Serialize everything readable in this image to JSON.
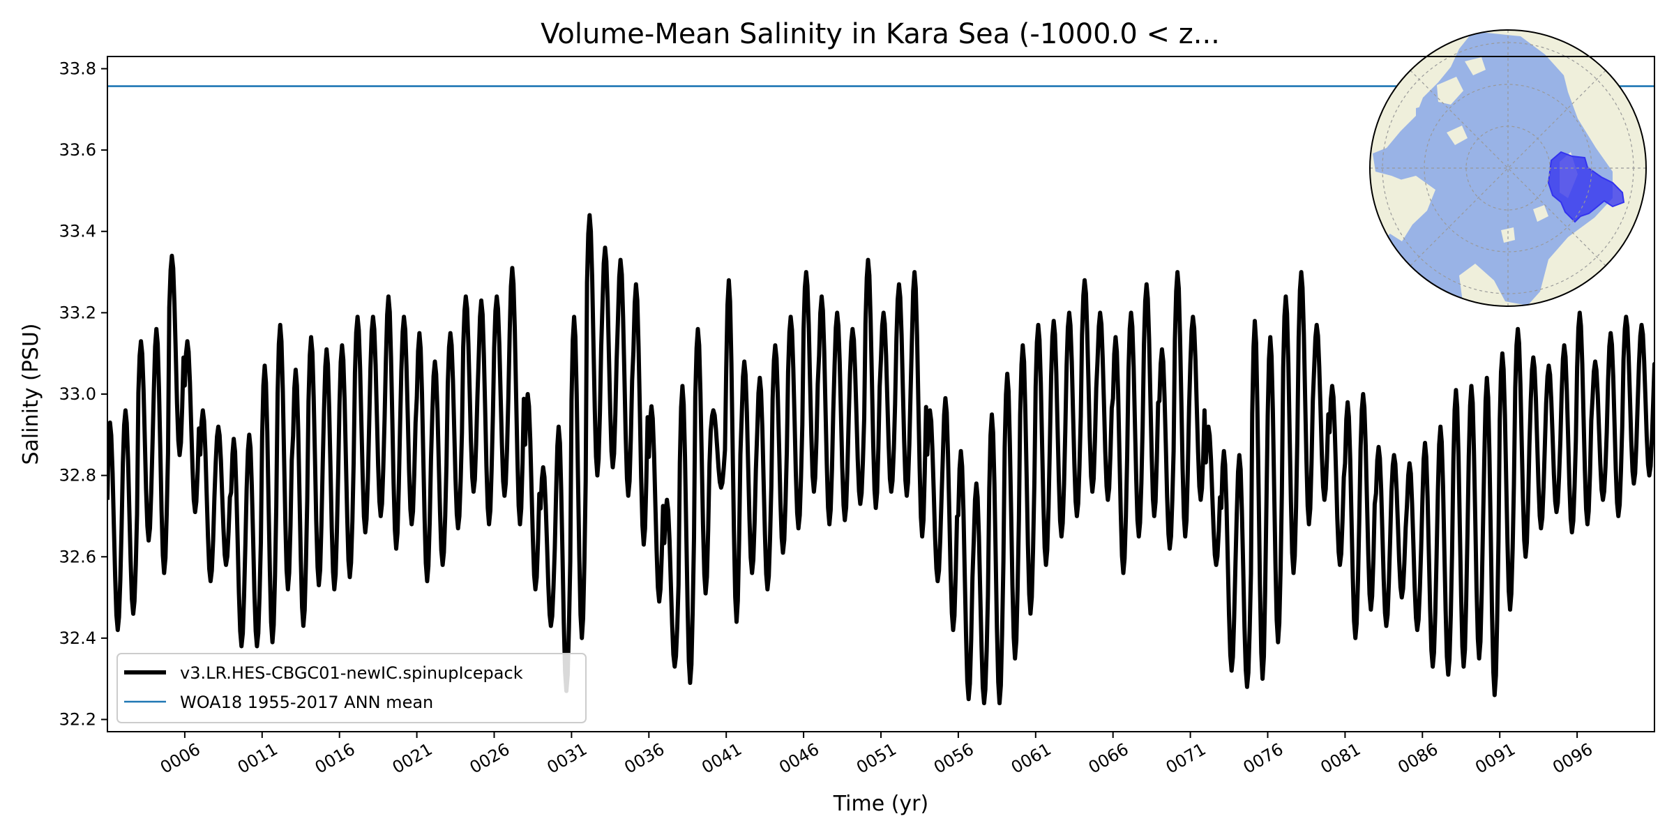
{
  "chart_data": {
    "type": "line",
    "title": "Volume-Mean Salinity in Kara Sea (-1000.0 < z...",
    "xlabel": "Time (yr)",
    "ylabel": "Salinity (PSU)",
    "xlim": [
      1.0,
      101.0
    ],
    "ylim": [
      32.17,
      33.83
    ],
    "x_ticks": [
      6,
      11,
      16,
      21,
      26,
      31,
      36,
      41,
      46,
      51,
      56,
      61,
      66,
      71,
      76,
      81,
      86,
      91,
      96
    ],
    "x_tick_labels": [
      "0006",
      "0011",
      "0016",
      "0021",
      "0026",
      "0031",
      "0036",
      "0041",
      "0046",
      "0051",
      "0056",
      "0061",
      "0066",
      "0071",
      "0076",
      "0081",
      "0086",
      "0091",
      "0096"
    ],
    "y_ticks": [
      32.2,
      32.4,
      32.6,
      32.8,
      33.0,
      33.2,
      33.4,
      33.6,
      33.8
    ],
    "y_tick_labels": [
      "32.2",
      "32.4",
      "32.6",
      "32.8",
      "33.0",
      "33.2",
      "33.4",
      "33.6",
      "33.8"
    ],
    "grid": false,
    "legend_position": "lower-left",
    "series": [
      {
        "name": "v3.LR.HES-CBGC01-newIC.spinupIcepack",
        "color": "#000000",
        "style": "thick-solid",
        "x_start": 1.0,
        "x_step": 1.0,
        "seasonal_max": [
          32.93,
          32.96,
          33.13,
          33.16,
          33.34,
          33.13,
          32.96,
          32.92,
          32.89,
          32.9,
          33.07,
          33.17,
          33.06,
          33.14,
          33.11,
          33.12,
          33.19,
          33.19,
          33.24,
          33.19,
          33.15,
          33.08,
          33.15,
          33.24,
          33.23,
          33.24,
          33.31,
          33.0,
          32.82,
          32.92,
          33.19,
          33.44,
          33.36,
          33.33,
          33.27,
          32.97,
          32.74,
          33.02,
          33.16,
          32.96,
          33.28,
          33.08,
          33.04,
          33.12,
          33.19,
          33.3,
          33.24,
          33.2,
          33.16,
          33.33,
          33.2,
          33.27,
          33.3,
          32.96,
          32.99,
          32.86,
          32.78,
          32.95,
          33.05,
          33.12,
          33.17,
          33.18,
          33.2,
          33.28,
          33.2,
          33.14,
          33.2,
          33.27,
          33.11,
          33.3,
          33.19,
          32.92,
          32.86,
          32.85,
          33.18,
          33.14,
          33.24,
          33.3,
          33.17,
          33.02,
          32.98,
          33.0,
          32.87,
          32.85,
          32.83,
          32.88,
          32.92,
          33.01,
          33.02,
          33.04,
          33.1,
          33.16,
          33.09,
          33.07,
          33.12,
          33.2,
          33.08,
          33.15,
          33.19,
          33.17
        ],
        "seasonal_min": [
          32.42,
          32.46,
          32.64,
          32.56,
          32.85,
          32.71,
          32.54,
          32.58,
          32.38,
          32.38,
          32.39,
          32.52,
          32.43,
          32.53,
          32.52,
          32.55,
          32.66,
          32.7,
          32.62,
          32.68,
          32.54,
          32.58,
          32.67,
          32.76,
          32.68,
          32.75,
          32.68,
          32.52,
          32.43,
          32.27,
          32.4,
          32.8,
          32.82,
          32.75,
          32.63,
          32.49,
          32.33,
          32.29,
          32.51,
          32.77,
          32.44,
          32.56,
          32.52,
          32.61,
          32.67,
          32.76,
          32.68,
          32.69,
          32.73,
          32.72,
          32.76,
          32.75,
          32.65,
          32.54,
          32.42,
          32.25,
          32.24,
          32.24,
          32.35,
          32.46,
          32.58,
          32.65,
          32.7,
          32.76,
          32.74,
          32.56,
          32.65,
          32.7,
          32.62,
          32.65,
          32.74,
          32.58,
          32.32,
          32.28,
          32.3,
          32.39,
          32.56,
          32.68,
          32.74,
          32.58,
          32.4,
          32.47,
          32.43,
          32.5,
          32.42,
          32.33,
          32.31,
          32.33,
          32.35,
          32.26,
          32.47,
          32.6,
          32.67,
          32.71,
          32.66,
          32.68,
          32.74,
          32.7,
          32.78,
          32.8
        ],
        "final_value": 33.06
      },
      {
        "name": "WOA18 1955-2017 ANN mean",
        "color": "#1f77b4",
        "style": "thin-solid",
        "value": 33.757
      }
    ],
    "inset": {
      "kind": "north-polar-map",
      "ocean_color": "#99b3e6",
      "land_color": "#efefdb",
      "region_color": "#3333ee"
    }
  }
}
